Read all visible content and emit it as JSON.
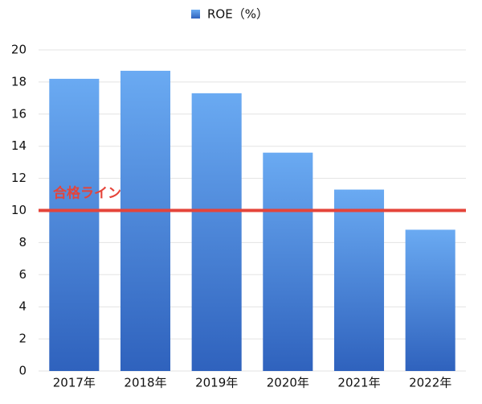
{
  "chart_data": {
    "type": "bar",
    "legend": "ROE（%）",
    "categories": [
      "2017年",
      "2018年",
      "2019年",
      "2020年",
      "2021年",
      "2022年"
    ],
    "values": [
      18.2,
      18.7,
      17.3,
      13.6,
      11.3,
      8.8
    ],
    "color": "#2f62bd",
    "ylim": [
      0,
      20
    ],
    "yticks": [
      0,
      2,
      4,
      6,
      8,
      10,
      12,
      14,
      16,
      18,
      20
    ],
    "grid": true,
    "legend_position": "top",
    "reference_line": {
      "value": 10,
      "label": "合格ライン",
      "color": "#e5443a"
    }
  }
}
